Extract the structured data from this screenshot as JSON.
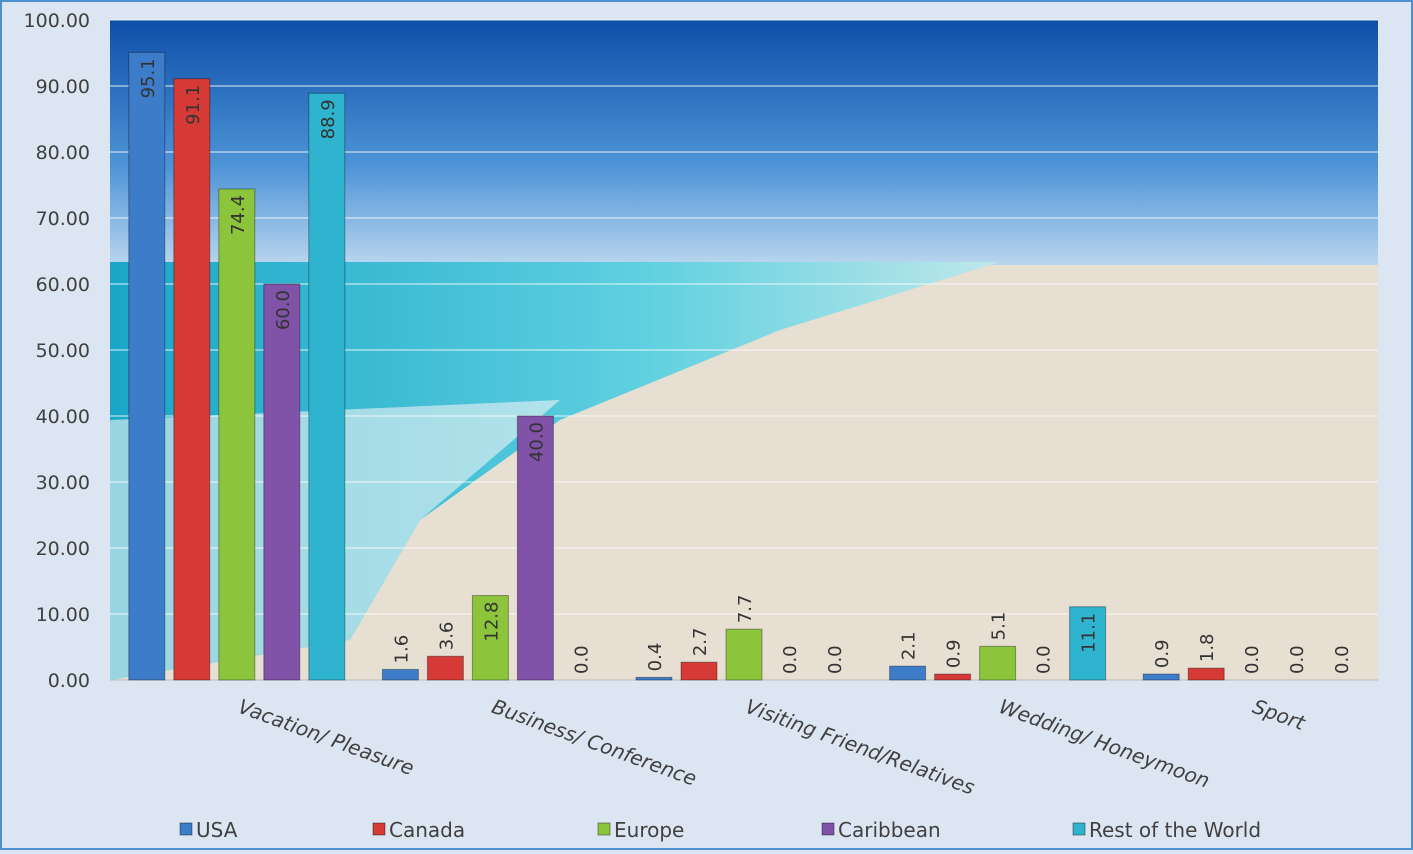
{
  "chart_data": {
    "type": "bar",
    "categories": [
      "Vacation/ Pleasure",
      "Business/ Conference",
      "Visiting Friend/Relatives",
      "Wedding/ Honeymoon",
      "Sport"
    ],
    "series": [
      {
        "name": "USA",
        "color": "#3d7cc9",
        "values": [
          95.1,
          1.6,
          0.4,
          2.1,
          0.9
        ],
        "value_labels": [
          "95.1",
          "1.6",
          "0.4",
          "2.1",
          "0.9"
        ]
      },
      {
        "name": "Canada",
        "color": "#d63a36",
        "values": [
          91.1,
          3.6,
          2.7,
          0.9,
          1.8
        ],
        "value_labels": [
          "91.1",
          "3.6",
          "2.7",
          "0.9",
          "1.8"
        ]
      },
      {
        "name": "Europe",
        "color": "#8cc43c",
        "values": [
          74.4,
          12.8,
          7.7,
          5.1,
          0.0
        ],
        "value_labels": [
          "74.4",
          "12.8",
          "7.7",
          "5.1",
          "0.0"
        ]
      },
      {
        "name": "Caribbean",
        "color": "#8052a8",
        "values": [
          60.0,
          40.0,
          0.0,
          0.0,
          0.0
        ],
        "value_labels": [
          "60.0",
          "40.0",
          "0.0",
          "0.0",
          "0.0"
        ]
      },
      {
        "name": "Rest of the World",
        "color": "#2fb4cf",
        "values": [
          88.9,
          0.0,
          0.0,
          11.1,
          0.0
        ],
        "value_labels": [
          "88.9",
          "0.0",
          "0.0",
          "11.1",
          "0.0"
        ]
      }
    ],
    "ylim": [
      0,
      100
    ],
    "yticks": [
      {
        "value": 0,
        "label": "0.00"
      },
      {
        "value": 10,
        "label": "10.00"
      },
      {
        "value": 20,
        "label": "20.00"
      },
      {
        "value": 30,
        "label": "30.00"
      },
      {
        "value": 40,
        "label": "40.00"
      },
      {
        "value": 50,
        "label": "50.00"
      },
      {
        "value": 60,
        "label": "60.00"
      },
      {
        "value": 70,
        "label": "70.00"
      },
      {
        "value": 80,
        "label": "80.00"
      },
      {
        "value": 90,
        "label": "90.00"
      },
      {
        "value": 100,
        "label": "100.00"
      }
    ],
    "grid": true,
    "legend": "bottom"
  }
}
